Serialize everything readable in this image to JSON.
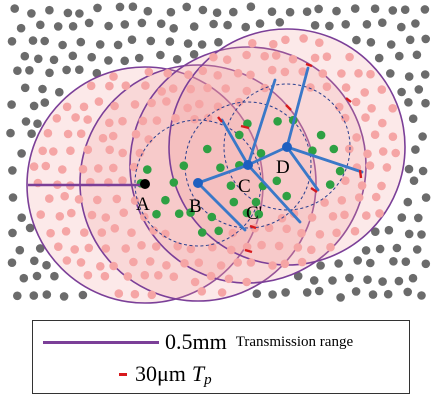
{
  "nodes": {
    "a": "A",
    "b": "B",
    "c": "C",
    "d": "D",
    "c_prime": "C'"
  },
  "legend": {
    "transmission_value": "0.5mm",
    "transmission_label": "Transmission range",
    "tp_value": "30μm",
    "tp_symbol": "T",
    "tp_subscript": "p"
  },
  "colors": {
    "range_circle": "#7b3f98",
    "range_fill": "#f29a9a",
    "tp_mark": "#d7191c",
    "inner_circle": "#2a3f8f",
    "node": "#1f5fbf",
    "link": "#3a78c8",
    "node_a": "#000000",
    "background_particle": "#6b6b6b",
    "in_range_particle": "#f5a5a5",
    "inner_particle": "#2ea043"
  }
}
